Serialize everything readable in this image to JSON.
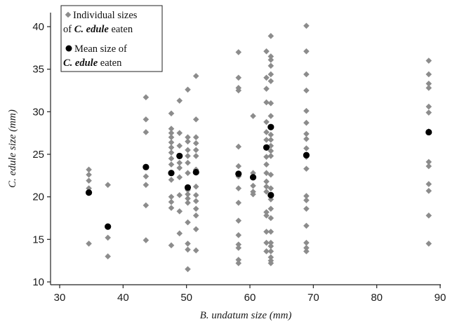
{
  "chart_data": {
    "type": "scatter",
    "xlabel": {
      "italic": "B. undatum",
      "rest": " size (mm)"
    },
    "ylabel": {
      "italic": "C. edule",
      "rest": " size (mm)"
    },
    "xlim": [
      30,
      90
    ],
    "ylim": [
      10,
      41
    ],
    "xticks": [
      "30",
      "40",
      "50",
      "60",
      "70",
      "80",
      "90"
    ],
    "yticks": [
      "10",
      "15",
      "20",
      "25",
      "30",
      "35",
      "40"
    ],
    "grid": false,
    "legend_position": "top-left",
    "legend": {
      "individual_line1": "Individual sizes",
      "individual_line2_pre": "of ",
      "individual_line2_it": "C. edule",
      "individual_line2_post": " eaten",
      "mean_line1": "Mean size of",
      "mean_line2_it": "C. edule",
      "mean_line2_post": " eaten"
    },
    "colors": {
      "individual": "#8c8c8c",
      "mean": "#000000"
    },
    "series": [
      {
        "marker": "diamond",
        "points": [
          [
            34.6,
            23.2
          ],
          [
            34.6,
            22.6
          ],
          [
            34.6,
            21.9
          ],
          [
            34.6,
            21.0
          ],
          [
            34.6,
            14.5
          ],
          [
            37.6,
            21.4
          ],
          [
            37.6,
            15.2
          ],
          [
            37.6,
            13.0
          ],
          [
            43.6,
            31.7
          ],
          [
            43.6,
            29.1
          ],
          [
            43.6,
            27.6
          ],
          [
            43.6,
            22.4
          ],
          [
            43.6,
            21.4
          ],
          [
            43.6,
            19.0
          ],
          [
            43.6,
            14.9
          ],
          [
            47.6,
            29.8
          ],
          [
            47.6,
            28.0
          ],
          [
            47.6,
            27.5
          ],
          [
            47.6,
            27.0
          ],
          [
            47.6,
            26.4
          ],
          [
            47.6,
            25.8
          ],
          [
            47.6,
            25.2
          ],
          [
            47.6,
            24.5
          ],
          [
            47.6,
            23.8
          ],
          [
            47.6,
            22.0
          ],
          [
            47.6,
            20.0
          ],
          [
            47.6,
            19.4
          ],
          [
            47.6,
            18.7
          ],
          [
            47.6,
            14.3
          ],
          [
            48.9,
            31.3
          ],
          [
            48.9,
            27.5
          ],
          [
            48.9,
            26.0
          ],
          [
            48.9,
            24.0
          ],
          [
            48.9,
            23.4
          ],
          [
            48.9,
            22.3
          ],
          [
            48.9,
            20.2
          ],
          [
            48.9,
            18.3
          ],
          [
            48.9,
            15.7
          ],
          [
            50.2,
            32.6
          ],
          [
            50.2,
            27.0
          ],
          [
            50.2,
            26.5
          ],
          [
            50.2,
            25.5
          ],
          [
            50.2,
            24.8
          ],
          [
            50.2,
            24.0
          ],
          [
            50.2,
            22.8
          ],
          [
            50.2,
            20.8
          ],
          [
            50.2,
            20.3
          ],
          [
            50.2,
            19.8
          ],
          [
            50.2,
            19.3
          ],
          [
            50.2,
            17.0
          ],
          [
            50.2,
            14.5
          ],
          [
            50.2,
            13.8
          ],
          [
            50.2,
            11.5
          ],
          [
            51.5,
            34.2
          ],
          [
            51.5,
            29.1
          ],
          [
            51.5,
            27.0
          ],
          [
            51.5,
            26.3
          ],
          [
            51.5,
            25.5
          ],
          [
            51.5,
            24.8
          ],
          [
            51.5,
            23.2
          ],
          [
            51.5,
            21.2
          ],
          [
            51.5,
            20.2
          ],
          [
            51.5,
            19.5
          ],
          [
            51.5,
            18.6
          ],
          [
            51.5,
            17.8
          ],
          [
            51.5,
            16.2
          ],
          [
            51.5,
            13.7
          ],
          [
            58.2,
            37.0
          ],
          [
            58.2,
            34.0
          ],
          [
            58.2,
            32.8
          ],
          [
            58.2,
            32.5
          ],
          [
            58.2,
            25.9
          ],
          [
            58.2,
            23.6
          ],
          [
            58.2,
            22.4
          ],
          [
            58.2,
            21.0
          ],
          [
            58.2,
            19.3
          ],
          [
            58.2,
            17.2
          ],
          [
            58.2,
            15.5
          ],
          [
            58.2,
            14.4
          ],
          [
            58.2,
            14.0
          ],
          [
            58.2,
            12.6
          ],
          [
            58.2,
            12.2
          ],
          [
            60.5,
            29.5
          ],
          [
            60.5,
            22.8
          ],
          [
            60.5,
            21.3
          ],
          [
            60.5,
            20.6
          ],
          [
            60.5,
            20.3
          ],
          [
            62.6,
            37.1
          ],
          [
            62.6,
            34.0
          ],
          [
            62.6,
            32.7
          ],
          [
            62.6,
            31.1
          ],
          [
            62.6,
            28.8
          ],
          [
            62.6,
            27.6
          ],
          [
            62.6,
            26.7
          ],
          [
            62.6,
            24.7
          ],
          [
            62.6,
            23.8
          ],
          [
            62.6,
            22.8
          ],
          [
            62.6,
            21.8
          ],
          [
            62.6,
            21.2
          ],
          [
            62.6,
            20.6
          ],
          [
            62.6,
            18.2
          ],
          [
            62.6,
            17.8
          ],
          [
            62.6,
            15.9
          ],
          [
            62.6,
            14.6
          ],
          [
            62.6,
            13.6
          ],
          [
            63.3,
            38.9
          ],
          [
            63.3,
            36.5
          ],
          [
            63.3,
            36.1
          ],
          [
            63.3,
            35.4
          ],
          [
            63.3,
            34.4
          ],
          [
            63.3,
            33.6
          ],
          [
            63.3,
            31.0
          ],
          [
            63.3,
            29.5
          ],
          [
            63.3,
            27.3
          ],
          [
            63.3,
            26.7
          ],
          [
            63.3,
            26.0
          ],
          [
            63.3,
            25.4
          ],
          [
            63.3,
            24.8
          ],
          [
            63.3,
            22.6
          ],
          [
            63.3,
            21.0
          ],
          [
            63.3,
            19.7
          ],
          [
            63.3,
            18.6
          ],
          [
            63.3,
            17.5
          ],
          [
            63.3,
            15.9
          ],
          [
            63.3,
            14.6
          ],
          [
            63.3,
            14.2
          ],
          [
            63.3,
            13.6
          ],
          [
            63.3,
            12.9
          ],
          [
            63.3,
            12.5
          ],
          [
            63.3,
            12.2
          ],
          [
            68.9,
            40.1
          ],
          [
            68.9,
            37.1
          ],
          [
            68.9,
            34.4
          ],
          [
            68.9,
            32.5
          ],
          [
            68.9,
            30.1
          ],
          [
            68.9,
            28.7
          ],
          [
            68.9,
            27.4
          ],
          [
            68.9,
            26.8
          ],
          [
            68.9,
            25.7
          ],
          [
            68.9,
            24.7
          ],
          [
            68.9,
            23.3
          ],
          [
            68.9,
            20.1
          ],
          [
            68.9,
            19.6
          ],
          [
            68.9,
            18.6
          ],
          [
            68.9,
            16.6
          ],
          [
            68.9,
            14.6
          ],
          [
            68.9,
            14.0
          ],
          [
            68.9,
            13.6
          ],
          [
            88.2,
            36.0
          ],
          [
            88.2,
            34.4
          ],
          [
            88.2,
            33.3
          ],
          [
            88.2,
            32.8
          ],
          [
            88.2,
            30.6
          ],
          [
            88.2,
            29.9
          ],
          [
            88.2,
            27.7
          ],
          [
            88.2,
            24.1
          ],
          [
            88.2,
            23.6
          ],
          [
            88.2,
            21.5
          ],
          [
            88.2,
            20.7
          ],
          [
            88.2,
            17.8
          ],
          [
            88.2,
            14.5
          ]
        ]
      },
      {
        "marker": "circle",
        "points": [
          [
            34.6,
            20.5
          ],
          [
            37.6,
            16.5
          ],
          [
            43.6,
            23.5
          ],
          [
            47.6,
            22.8
          ],
          [
            48.9,
            24.8
          ],
          [
            50.2,
            21.1
          ],
          [
            51.5,
            22.9
          ],
          [
            58.2,
            22.7
          ],
          [
            60.5,
            22.3
          ],
          [
            62.6,
            25.8
          ],
          [
            63.3,
            28.2
          ],
          [
            63.3,
            20.2
          ],
          [
            68.9,
            24.9
          ],
          [
            88.2,
            27.6
          ]
        ]
      }
    ]
  }
}
